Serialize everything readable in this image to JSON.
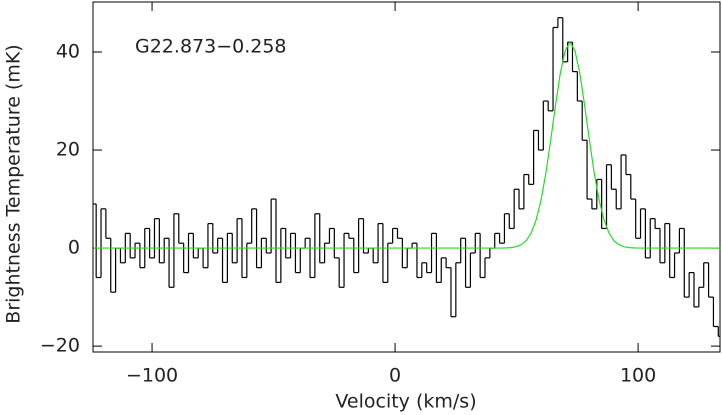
{
  "chart_data": {
    "type": "step",
    "annotation": "G22.873−0.258",
    "x_label": "Velocity (km/s)",
    "y_label": "Brightness Temperature (mK)",
    "x": [
      -124,
      -122,
      -120,
      -118,
      -116,
      -114,
      -112,
      -110,
      -108,
      -106,
      -104,
      -102,
      -100,
      -98,
      -96,
      -94,
      -92,
      -90,
      -88,
      -86,
      -84,
      -82,
      -80,
      -78,
      -76,
      -74,
      -72,
      -70,
      -68,
      -66,
      -64,
      -62,
      -60,
      -58,
      -56,
      -54,
      -52,
      -50,
      -48,
      -46,
      -44,
      -42,
      -40,
      -38,
      -36,
      -34,
      -32,
      -30,
      -28,
      -26,
      -24,
      -22,
      -20,
      -18,
      -16,
      -14,
      -12,
      -10,
      -8,
      -6,
      -4,
      -2,
      0,
      2,
      4,
      6,
      8,
      10,
      12,
      14,
      16,
      18,
      20,
      22,
      24,
      26,
      28,
      30,
      32,
      34,
      36,
      38,
      40,
      42,
      44,
      46,
      48,
      50,
      52,
      54,
      56,
      58,
      60,
      62,
      64,
      66,
      68,
      70,
      72,
      74,
      76,
      78,
      80,
      82,
      84,
      86,
      88,
      90,
      92,
      94,
      96,
      98,
      100,
      102,
      104,
      106,
      108,
      110,
      112,
      114,
      116,
      118,
      120,
      122,
      124,
      126,
      128,
      130,
      132,
      134
    ],
    "series": [
      {
        "color": "#000000",
        "style": "step",
        "values": [
          9,
          -6,
          8,
          2,
          -9,
          0,
          -3,
          3,
          -2,
          1,
          -4,
          4,
          -2,
          6,
          -3,
          2,
          -8,
          7,
          1,
          -5,
          3,
          -2,
          0,
          -4,
          5,
          -1,
          2,
          -7,
          3,
          -3,
          6,
          -6,
          1,
          8,
          -4,
          2,
          -1,
          10,
          -7,
          4,
          -2,
          3,
          -5,
          0,
          2,
          -6,
          7,
          -3,
          1,
          4,
          -2,
          -8,
          3,
          2,
          -5,
          6,
          -1,
          0,
          -3,
          5,
          -7,
          1,
          4,
          2,
          -4,
          0,
          1,
          -6,
          -3,
          -5,
          3,
          -7,
          -2,
          -4,
          -14,
          -3,
          2,
          -8,
          -1,
          3,
          -6,
          -2,
          0,
          3,
          1,
          7,
          4,
          12,
          8,
          15,
          13,
          24,
          20,
          30,
          28,
          45,
          47,
          38,
          42,
          36,
          30,
          22,
          10,
          8,
          14,
          4,
          17,
          12,
          8,
          19,
          15,
          10,
          2,
          8,
          -2,
          6,
          4,
          -3,
          5,
          -6,
          -1,
          4,
          -10,
          -5,
          -12,
          -8,
          -3,
          -10,
          -16,
          -18
        ]
      },
      {
        "color": "#22dd22",
        "style": "line",
        "values": [
          0,
          0,
          0,
          0,
          0,
          0,
          0,
          0,
          0,
          0,
          0,
          0,
          0,
          0,
          0,
          0,
          0,
          0,
          0,
          0,
          0,
          0,
          0,
          0,
          0,
          0,
          0,
          0,
          0,
          0,
          0,
          0,
          0,
          0,
          0,
          0,
          0,
          0,
          0,
          0,
          0,
          0,
          0,
          0,
          0,
          0,
          0,
          0,
          0,
          0,
          0,
          0,
          0,
          0,
          0,
          0,
          0,
          0,
          0,
          0,
          0,
          0,
          0,
          0,
          0,
          0,
          0,
          0,
          0,
          0,
          0,
          0,
          0,
          0,
          0,
          0,
          0,
          0,
          0,
          0,
          0,
          0,
          0,
          0,
          0,
          0.04,
          0.12,
          0.3,
          0.71,
          1.54,
          3.09,
          5.68,
          9.66,
          15.13,
          21.9,
          29.1,
          35.7,
          40.3,
          42,
          40.3,
          35.7,
          29.1,
          21.9,
          15.1,
          9.7,
          5.7,
          3.1,
          1.5,
          0.7,
          0.3,
          0.1,
          0.04,
          0,
          0,
          0,
          0,
          0,
          0,
          0,
          0,
          0,
          0,
          0,
          0,
          0,
          0,
          0,
          0,
          0,
          0
        ]
      }
    ],
    "xlim": [
      -124.3,
      133.7
    ],
    "ylim": [
      -21.2,
      50.2
    ],
    "xticks": [
      {
        "value": -100,
        "label": "−100"
      },
      0,
      100
    ],
    "yticks": [
      {
        "value": -20,
        "label": "−20"
      },
      0,
      20,
      40
    ]
  }
}
